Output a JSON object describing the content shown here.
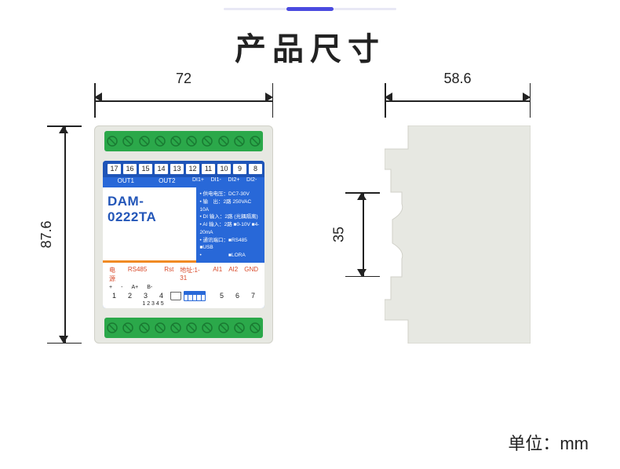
{
  "title": "产品尺寸",
  "unit_label": "单位：mm",
  "dimensions": {
    "front_width": "72",
    "front_height": "87.6",
    "side_width": "58.6",
    "side_notch_height_visible": "35"
  },
  "module": {
    "product_name": "DAM-0222TA",
    "colors": {
      "body": "#e7e8e2",
      "terminal_strip": "#2ba84a",
      "label_bg": "#2868d8",
      "label_dark": "#1f55b8",
      "accent_orange": "#f08a24",
      "text_red": "#d84a2a",
      "screw": "#4cd06a"
    },
    "top_terminal_count": 10,
    "bottom_terminal_count": 10,
    "top_numbers_left": [
      "17",
      "16",
      "15",
      "14",
      "13",
      "12"
    ],
    "top_numbers_right": [
      "11",
      "10",
      "9",
      "8"
    ],
    "top_sub_left": [
      "OUT1",
      "OUT2"
    ],
    "top_sub_right": [
      "DI1+",
      "DI1-",
      "DI2+",
      "DI2-"
    ],
    "specs": [
      "供电电压：DC7-30V",
      "输　出：2路 250VAC 10A",
      "DI 输入：2路 (光耦隔离)",
      "AI 输入：2路 ■0-10V ■4-20mA",
      "通讯端口：■RS485 ■USB",
      "　　　　　■LORA"
    ],
    "bottom_section_labels": {
      "power": "电源",
      "rs485": "RS485",
      "rst": "Rst",
      "addr": "地址:1-31",
      "ai1": "AI1",
      "ai2": "AI2",
      "gnd": "GND",
      "power_plus": "+",
      "power_minus": "-",
      "a_plus": "A+",
      "b_minus": "B-"
    },
    "bottom_numbers_left": [
      "1",
      "2",
      "3",
      "4"
    ],
    "bottom_numbers_right": [
      "5",
      "6",
      "7"
    ],
    "dip_count": 5
  },
  "side_view": {
    "fill": "#e7e8e2",
    "stroke": "#d0d0c8"
  }
}
